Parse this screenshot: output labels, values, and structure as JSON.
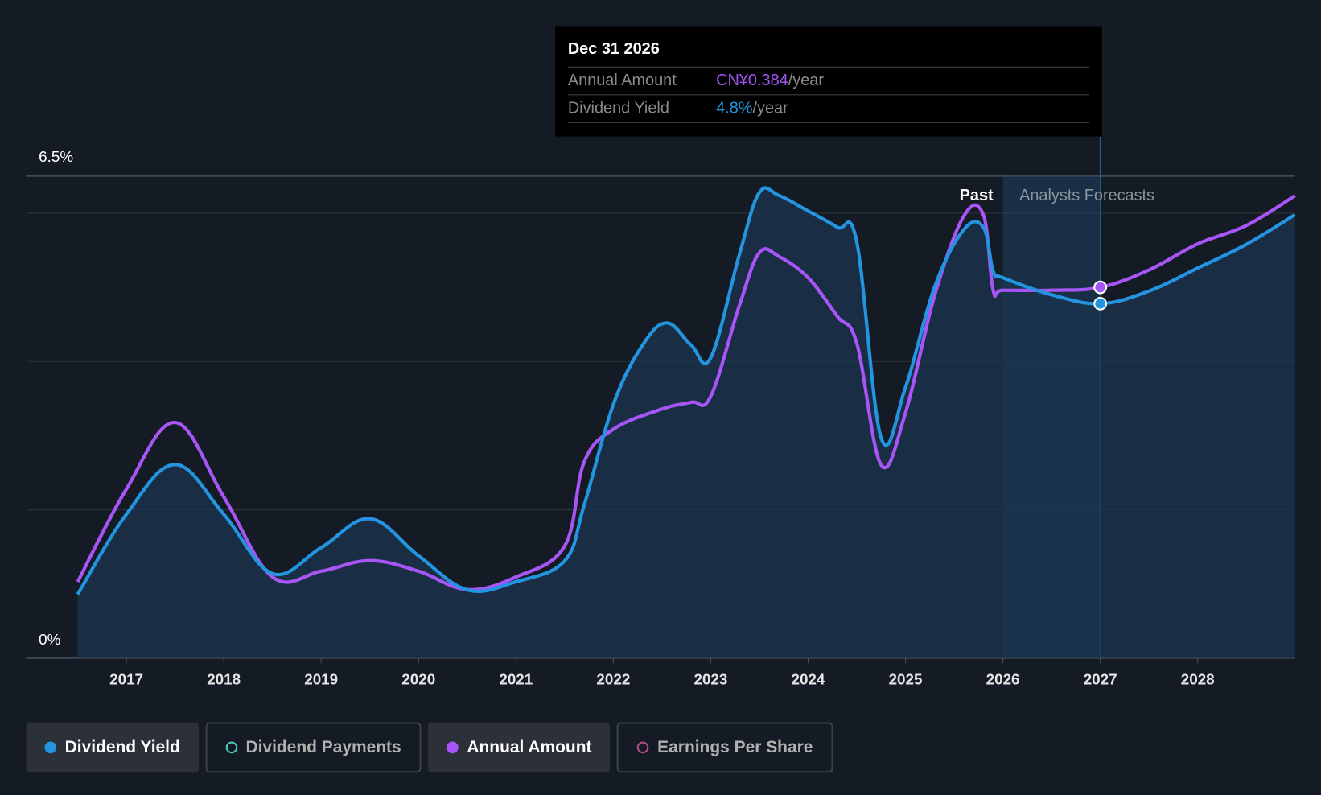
{
  "chart_data": {
    "type": "line",
    "y_axis_labels": {
      "top": "6.5%",
      "bottom": "0%"
    },
    "ylim": [
      0,
      6.5
    ],
    "x_ticks": [
      "2017",
      "2018",
      "2019",
      "2020",
      "2021",
      "2022",
      "2023",
      "2024",
      "2025",
      "2026",
      "2027",
      "2028"
    ],
    "xlim": [
      2016.5,
      2029.0
    ],
    "past_label": "Past",
    "forecast_label": "Analysts Forecasts",
    "past_boundary_year": 2026.0,
    "series": [
      {
        "name": "Dividend Yield",
        "unit": "%",
        "color": "#2394df",
        "x": [
          2016.5,
          2017,
          2017.5,
          2018,
          2018.5,
          2019,
          2019.5,
          2020,
          2020.5,
          2021,
          2021.5,
          2021.7,
          2022,
          2022.3,
          2022.55,
          2022.8,
          2023,
          2023.3,
          2023.5,
          2023.7,
          2024,
          2024.3,
          2024.5,
          2024.75,
          2025,
          2025.3,
          2025.6,
          2025.8,
          2025.9,
          2026,
          2026.5,
          2027,
          2027.5,
          2028,
          2028.5,
          2029
        ],
        "values": [
          0.86,
          1.94,
          2.61,
          1.94,
          1.14,
          1.49,
          1.88,
          1.38,
          0.92,
          1.03,
          1.31,
          2.06,
          3.42,
          4.22,
          4.52,
          4.22,
          4.05,
          5.47,
          6.28,
          6.24,
          6.03,
          5.81,
          5.61,
          2.97,
          3.65,
          5.01,
          5.78,
          5.81,
          5.22,
          5.13,
          4.9,
          4.78,
          4.95,
          5.26,
          5.58,
          5.98
        ]
      },
      {
        "name": "Annual Amount",
        "unit": "CN¥",
        "color": "#a855f7",
        "ylim": [
          0,
          0.4992
        ],
        "x": [
          2016.5,
          2017,
          2017.5,
          2018,
          2018.5,
          2019,
          2019.5,
          2020,
          2020.5,
          2021,
          2021.5,
          2021.7,
          2022,
          2022.5,
          2022.8,
          2023,
          2023.3,
          2023.5,
          2023.7,
          2024,
          2024.3,
          2024.5,
          2024.75,
          2025,
          2025.3,
          2025.6,
          2025.8,
          2025.9,
          2026,
          2026.5,
          2027,
          2027.5,
          2028,
          2028.5,
          2029
        ],
        "values": [
          0.079,
          0.175,
          0.244,
          0.167,
          0.084,
          0.09,
          0.101,
          0.09,
          0.071,
          0.084,
          0.116,
          0.203,
          0.237,
          0.258,
          0.265,
          0.271,
          0.367,
          0.42,
          0.416,
          0.394,
          0.354,
          0.326,
          0.2,
          0.254,
          0.376,
          0.458,
          0.459,
          0.381,
          0.381,
          0.381,
          0.384,
          0.402,
          0.429,
          0.448,
          0.479
        ]
      }
    ],
    "highlight_year": 2027.0
  },
  "tooltip": {
    "date": "Dec 31 2026",
    "rows": [
      {
        "label": "Annual Amount",
        "value": "CN¥0.384",
        "unit": "/year",
        "color": "#a855f7"
      },
      {
        "label": "Dividend Yield",
        "value": "4.8%",
        "unit": "/year",
        "color": "#2394df"
      }
    ]
  },
  "legend": [
    {
      "label": "Dividend Yield",
      "color": "#2394df",
      "active": true
    },
    {
      "label": "Dividend Payments",
      "color": "#4fc7b7",
      "active": false
    },
    {
      "label": "Annual Amount",
      "color": "#a855f7",
      "active": true
    },
    {
      "label": "Earnings Per Share",
      "color": "#b04a84",
      "active": false
    }
  ]
}
